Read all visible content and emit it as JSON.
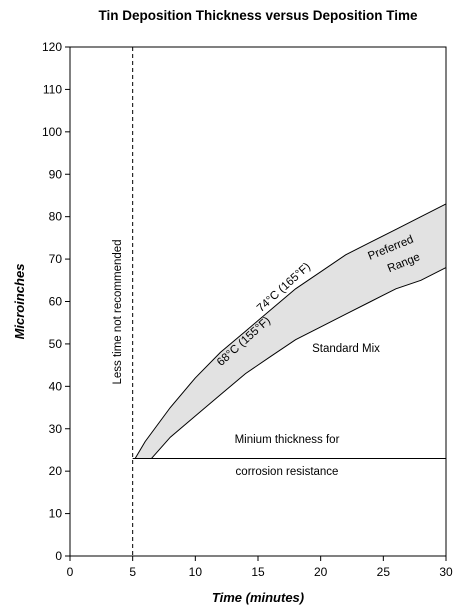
{
  "chart_data": {
    "type": "area",
    "title": "Tin Deposition Thickness versus Deposition Time",
    "xlabel": "Time (minutes)",
    "ylabel": "Microinches",
    "xlim": [
      0,
      30
    ],
    "ylim": [
      0,
      120
    ],
    "xticks": [
      0,
      5,
      10,
      15,
      20,
      25,
      30
    ],
    "yticks": [
      0,
      10,
      20,
      30,
      40,
      50,
      60,
      70,
      80,
      90,
      100,
      110,
      120
    ],
    "grid": false,
    "legend": "none",
    "series": [
      {
        "name": "74°C (165°F)",
        "x": [
          5.2,
          6,
          8,
          10,
          12,
          14,
          16,
          18,
          20,
          22,
          24,
          26,
          28,
          30
        ],
        "y": [
          23,
          27,
          35,
          42,
          48,
          53,
          58,
          63,
          67,
          71,
          74,
          77,
          80,
          83
        ]
      },
      {
        "name": "68°C (155°F)",
        "x": [
          6.5,
          8,
          10,
          12,
          14,
          16,
          18,
          20,
          22,
          24,
          26,
          28,
          30
        ],
        "y": [
          23,
          28,
          33,
          38,
          43,
          47,
          51,
          54,
          57,
          60,
          63,
          65,
          68
        ]
      }
    ],
    "reference_lines": [
      {
        "orientation": "vertical",
        "x": 5,
        "style": "dashed"
      },
      {
        "orientation": "horizontal",
        "y": 23,
        "x_start": 5,
        "x_end": 30,
        "style": "solid"
      }
    ],
    "shaded_region": {
      "between": [
        "74°C (165°F)",
        "68°C (155°F)"
      ],
      "color": "#e2e2e2"
    },
    "annotations": {
      "vertical_note": "Less time not recommended",
      "label_upper": "74°C (165°F)",
      "label_lower": "68°C (155°F)",
      "preferred_line1": "Preferred",
      "preferred_line2": "Range",
      "standard_mix": "Standard Mix",
      "min_line1": "Minium thickness for",
      "min_line2": "corrosion resistance"
    }
  }
}
